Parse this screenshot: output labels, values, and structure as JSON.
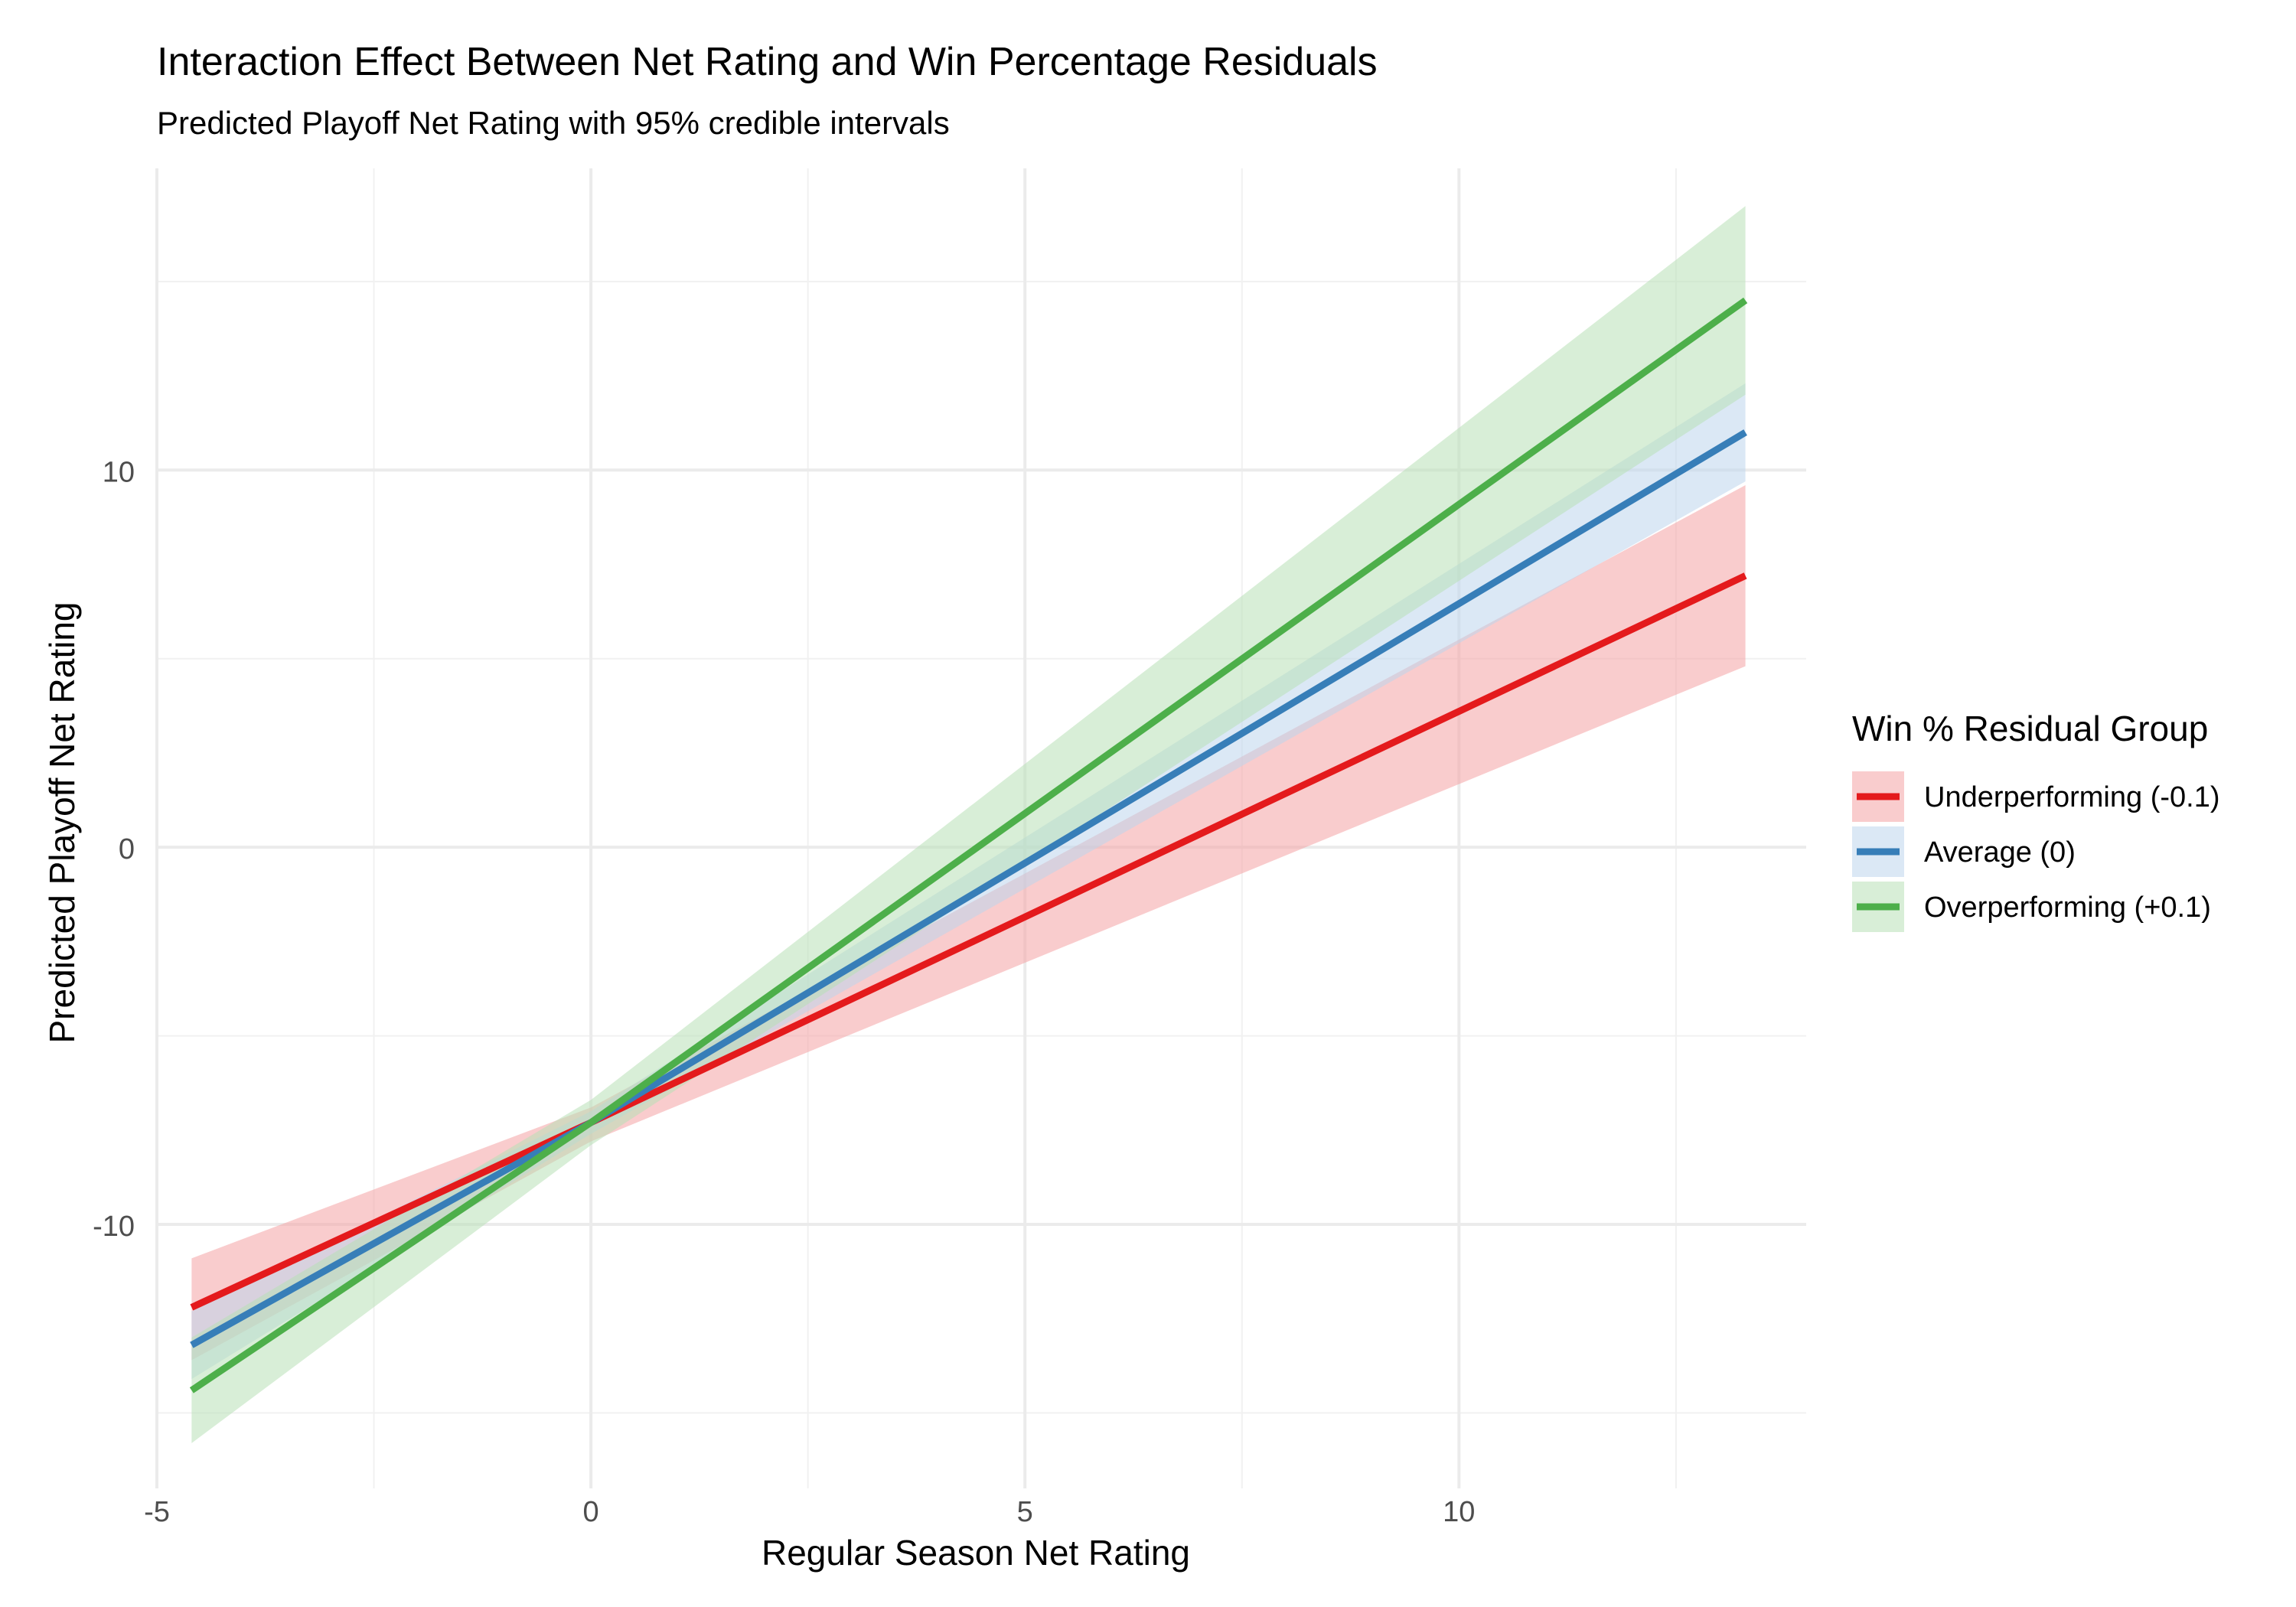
{
  "chart_data": {
    "type": "line",
    "title": "Interaction Effect Between Net Rating and Win Percentage Residuals",
    "subtitle": "Predicted Playoff Net Rating with 95% credible intervals",
    "xlabel": "Regular Season Net Rating",
    "ylabel": "Predicted Playoff Net Rating",
    "xlim": [
      -5,
      14
    ],
    "ylim": [
      -17,
      18
    ],
    "x_ticks": [
      -5,
      0,
      5,
      10
    ],
    "x_tick_labels": [
      "-5",
      "0",
      "5",
      "10"
    ],
    "y_ticks": [
      -10,
      0,
      10
    ],
    "y_tick_labels": [
      "-10",
      "0",
      "10"
    ],
    "x_minor_grid": [
      -2.5,
      2.5,
      7.5,
      12.5
    ],
    "y_minor_grid": [
      -15,
      -5,
      5,
      15
    ],
    "grid": true,
    "legend": {
      "title": "Win % Residual Group",
      "position": "right"
    },
    "series": [
      {
        "name": "Underperforming (-0.1)",
        "color": "#E41A1C",
        "fill": "#F4A3A4",
        "x": [
          -4.6,
          0,
          13.3
        ],
        "y": [
          -12.2,
          -7.3,
          7.2
        ],
        "lower": [
          -13.6,
          -7.8,
          4.8
        ],
        "upper": [
          -10.9,
          -6.9,
          9.6
        ]
      },
      {
        "name": "Average (0)",
        "color": "#377EB8",
        "fill": "#BDD5EC",
        "x": [
          -4.6,
          0,
          13.3
        ],
        "y": [
          -13.2,
          -7.3,
          11.0
        ],
        "lower": [
          -14.1,
          -7.6,
          9.7
        ],
        "upper": [
          -12.3,
          -7.0,
          12.3
        ]
      },
      {
        "name": "Overperforming (+0.1)",
        "color": "#4DAF4A",
        "fill": "#B8E0B6",
        "x": [
          -4.6,
          0,
          13.3
        ],
        "y": [
          -14.4,
          -7.3,
          14.5
        ],
        "lower": [
          -15.8,
          -7.9,
          12.0
        ],
        "upper": [
          -13.0,
          -6.7,
          17.0
        ]
      }
    ]
  }
}
